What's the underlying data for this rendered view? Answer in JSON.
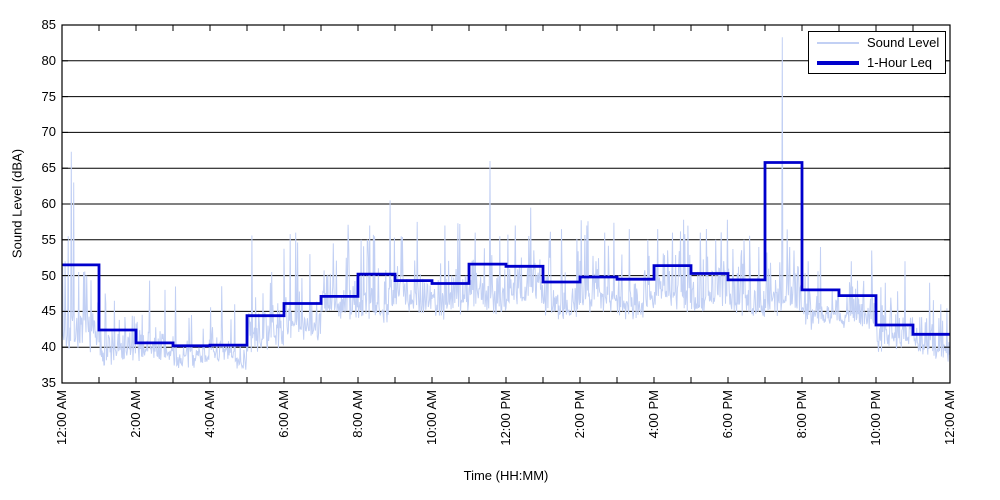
{
  "chart_data": {
    "type": "line",
    "title": "",
    "xlabel": "Time (HH:MM)",
    "ylabel": "Sound Level (dBA)",
    "x_axis": {
      "tick_labels": [
        "12:00 AM",
        "2:00 AM",
        "4:00 AM",
        "6:00 AM",
        "8:00 AM",
        "10:00 AM",
        "12:00 PM",
        "2:00 PM",
        "4:00 PM",
        "6:00 PM",
        "8:00 PM",
        "10:00 PM",
        "12:00 AM"
      ],
      "label_interval_hours": 2,
      "minor_tick_interval_hours": 1,
      "range_hours": [
        0,
        24
      ]
    },
    "y_axis": {
      "ticks": [
        35,
        40,
        45,
        50,
        55,
        60,
        65,
        70,
        75,
        80,
        85
      ],
      "range": [
        35,
        85
      ]
    },
    "grid": {
      "horizontal": true,
      "vertical": false
    },
    "legend": {
      "position": "top-right-inside",
      "items": [
        {
          "label": "Sound Level",
          "color": "#c2d0f4"
        },
        {
          "label": "1-Hour Leq",
          "color": "#0000cc"
        }
      ]
    },
    "series": [
      {
        "name": "Sound Level",
        "type": "noisy-samples",
        "color": "#c2d0f4",
        "line_width": 1,
        "sample_interval_minutes": 1,
        "seed": 7,
        "hourly_floor_dba": [
          39.5,
          38.5,
          38.0,
          37.8,
          37.7,
          40.0,
          42.0,
          43.5,
          44.5,
          45.0,
          45.0,
          45.5,
          45.5,
          45.0,
          45.0,
          45.0,
          45.5,
          45.5,
          45.0,
          45.0,
          43.5,
          42.5,
          40.5,
          38.8
        ],
        "hourly_spread_dba": [
          3.0,
          2.2,
          1.7,
          1.4,
          1.5,
          2.2,
          2.6,
          2.6,
          3.0,
          2.8,
          2.8,
          3.0,
          3.0,
          2.8,
          3.0,
          2.8,
          3.0,
          3.0,
          2.8,
          2.8,
          2.6,
          2.3,
          2.1,
          1.9
        ],
        "spikes": [
          {
            "minute": 5,
            "dba": 52.0
          },
          {
            "minute": 10,
            "dba": 55.5
          },
          {
            "minute": 15,
            "dba": 67.3
          },
          {
            "minute": 19,
            "dba": 63.0
          },
          {
            "minute": 27,
            "dba": 50.5
          },
          {
            "minute": 40,
            "dba": 50.0
          },
          {
            "minute": 70,
            "dba": 47.5
          },
          {
            "minute": 85,
            "dba": 46.5
          },
          {
            "minute": 142,
            "dba": 49.3
          },
          {
            "minute": 167,
            "dba": 48.0
          },
          {
            "minute": 210,
            "dba": 44.5
          },
          {
            "minute": 259,
            "dba": 48.5
          },
          {
            "minute": 280,
            "dba": 46.0
          },
          {
            "minute": 308,
            "dba": 55.6
          },
          {
            "minute": 340,
            "dba": 50.5
          },
          {
            "minute": 370,
            "dba": 55.8
          },
          {
            "minute": 379,
            "dba": 56.0
          },
          {
            "minute": 402,
            "dba": 53.0
          },
          {
            "minute": 440,
            "dba": 54.5
          },
          {
            "minute": 465,
            "dba": 53.5
          },
          {
            "minute": 485,
            "dba": 55.0
          },
          {
            "minute": 499,
            "dba": 57.0
          },
          {
            "minute": 532,
            "dba": 60.5
          },
          {
            "minute": 550,
            "dba": 55.5
          },
          {
            "minute": 576,
            "dba": 57.5
          },
          {
            "minute": 621,
            "dba": 57.0
          },
          {
            "minute": 645,
            "dba": 55.5
          },
          {
            "minute": 670,
            "dba": 56.0
          },
          {
            "minute": 694,
            "dba": 66.0
          },
          {
            "minute": 710,
            "dba": 55.5
          },
          {
            "minute": 735,
            "dba": 57.0
          },
          {
            "minute": 760,
            "dba": 59.5
          },
          {
            "minute": 790,
            "dba": 55.0
          },
          {
            "minute": 810,
            "dba": 56.5
          },
          {
            "minute": 851,
            "dba": 57.0
          },
          {
            "minute": 880,
            "dba": 56.0
          },
          {
            "minute": 920,
            "dba": 56.5
          },
          {
            "minute": 950,
            "dba": 55.0
          },
          {
            "minute": 966,
            "dba": 56.5
          },
          {
            "minute": 990,
            "dba": 56.0
          },
          {
            "minute": 1010,
            "dba": 55.8
          },
          {
            "minute": 1035,
            "dba": 56.0
          },
          {
            "minute": 1060,
            "dba": 55.0
          },
          {
            "minute": 1106,
            "dba": 55.0
          },
          {
            "minute": 1130,
            "dba": 54.0
          },
          {
            "minute": 1168,
            "dba": 83.3
          },
          {
            "minute": 1180,
            "dba": 54.0
          },
          {
            "minute": 1210,
            "dba": 52.0
          },
          {
            "minute": 1230,
            "dba": 54.0
          },
          {
            "minute": 1280,
            "dba": 52.0
          },
          {
            "minute": 1313,
            "dba": 53.5
          },
          {
            "minute": 1335,
            "dba": 49.0
          },
          {
            "minute": 1367,
            "dba": 52.0
          },
          {
            "minute": 1407,
            "dba": 49.0
          },
          {
            "minute": 1425,
            "dba": 46.0
          }
        ]
      },
      {
        "name": "1-Hour Leq",
        "type": "step",
        "color": "#0000cc",
        "line_width": 3,
        "hours": [
          "12 AM",
          "1 AM",
          "2 AM",
          "3 AM",
          "4 AM",
          "5 AM",
          "6 AM",
          "7 AM",
          "8 AM",
          "9 AM",
          "10 AM",
          "11 AM",
          "12 PM",
          "1 PM",
          "2 PM",
          "3 PM",
          "4 PM",
          "5 PM",
          "6 PM",
          "7 PM",
          "8 PM",
          "9 PM",
          "10 PM",
          "11 PM"
        ],
        "hourly_leq_dba": [
          51.5,
          42.4,
          40.6,
          40.2,
          40.3,
          44.4,
          46.1,
          47.1,
          50.2,
          49.3,
          48.9,
          51.6,
          51.3,
          49.1,
          49.8,
          49.5,
          51.4,
          50.3,
          49.4,
          65.8,
          48.0,
          47.2,
          43.1,
          41.8
        ]
      }
    ]
  }
}
